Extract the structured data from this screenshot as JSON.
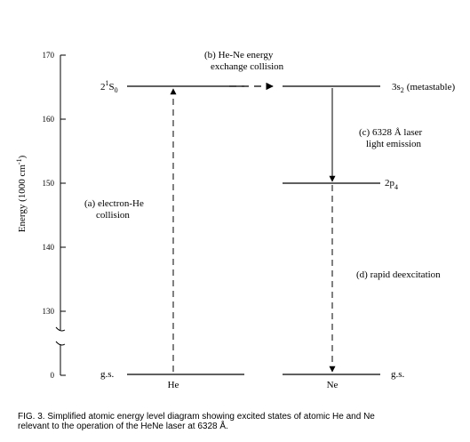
{
  "axis": {
    "label_main": "Energy (1000 cm",
    "label_exp": "-1",
    "label_close": ")",
    "ticks": [
      "170",
      "160",
      "150",
      "140",
      "130",
      "0"
    ]
  },
  "levels": {
    "he_excited_base": "2",
    "he_excited_sup": "1",
    "he_excited_mid": "S",
    "he_excited_sub": "0",
    "ne_upper_base": "3s",
    "ne_upper_sub": "2",
    "ne_upper_note": "(metastable)",
    "ne_lower_base": "2p",
    "ne_lower_sub": "4",
    "he_ground": "g.s.",
    "ne_ground": "g.s.",
    "he_name": "He",
    "ne_name": "Ne"
  },
  "processes": {
    "a_line1": "(a) electron-He",
    "a_line2": "collision",
    "b_line1": "(b) He-Ne energy",
    "b_line2": "exchange collision",
    "c_line1": "(c) 6328 Å laser",
    "c_line2": "light emission",
    "d_line1": "(d) rapid deexcitation"
  },
  "caption": {
    "line1": "FIG. 3.  Simplified atomic energy level diagram showing excited states of atomic He and Ne",
    "line2": "relevant to the operation of the HeNe laser at 6328 Å."
  }
}
